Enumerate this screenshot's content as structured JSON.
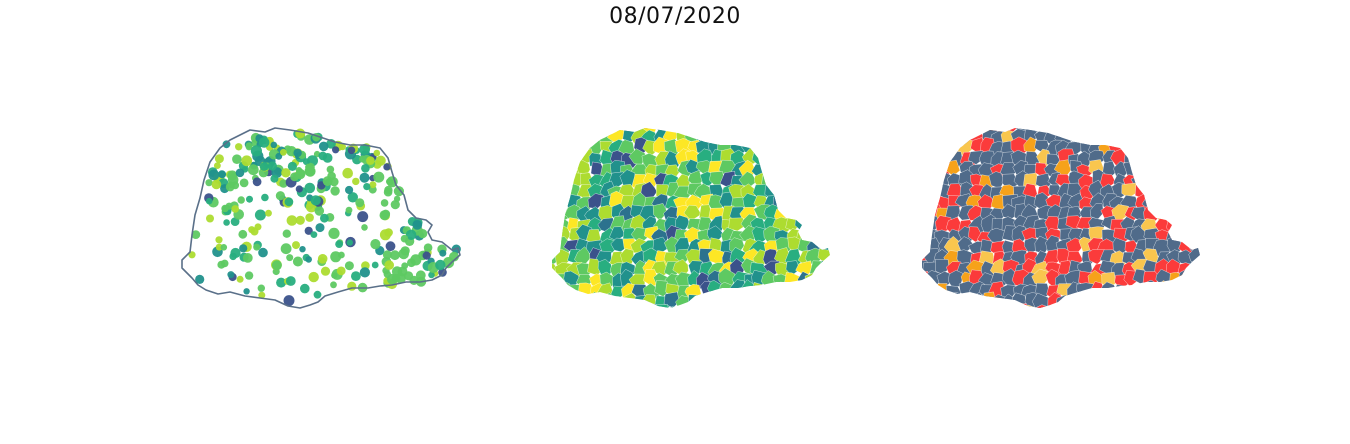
{
  "figure": {
    "date_title": "08/07/2020"
  },
  "panels": [
    {
      "id": "points",
      "kind": "proportional-points",
      "outline_color": "#5a7089"
    },
    {
      "id": "choropleth",
      "kind": "choropleth",
      "edge_color": "#ffffff"
    },
    {
      "id": "classes",
      "kind": "categorical",
      "edge_color": "#ffffff"
    }
  ],
  "palettes": {
    "viridis": [
      "#3b528b",
      "#2c728e",
      "#21918c",
      "#28ae80",
      "#5ec962",
      "#addc30",
      "#fde725"
    ],
    "classes": {
      "base": "#506b8a",
      "red": "#fb3b3b",
      "orange": "#f6a21a",
      "yellow": "#f9c64e"
    }
  }
}
